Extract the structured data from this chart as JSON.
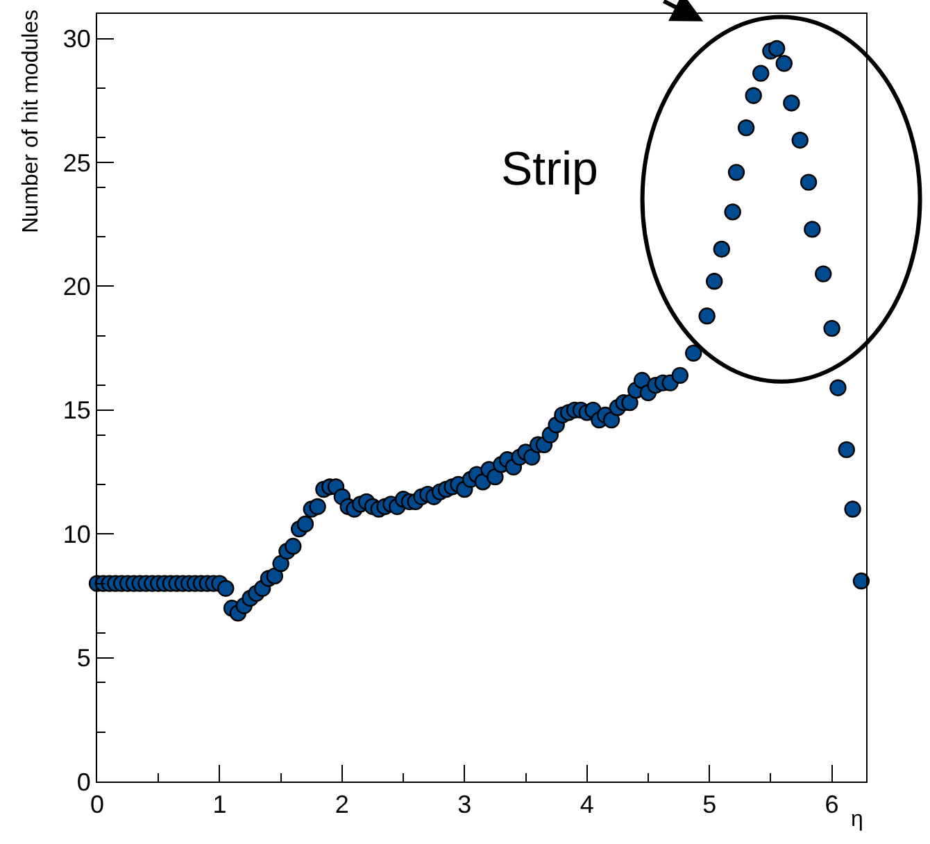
{
  "chart_data": {
    "type": "scatter",
    "xlabel": "η",
    "ylabel": "Number of hit modules",
    "annotations": [
      "Strip"
    ],
    "xlim": [
      0,
      6.28
    ],
    "ylim": [
      0,
      31
    ],
    "xticks": [
      0,
      1,
      2,
      3,
      4,
      5,
      6
    ],
    "yticks": [
      0,
      5,
      10,
      15,
      20,
      25,
      30
    ],
    "marker": "circle",
    "series": [
      {
        "color": "#004a8f",
        "x": [
          0,
          0.05,
          0.1,
          0.15,
          0.2,
          0.25,
          0.3,
          0.35,
          0.4,
          0.45,
          0.5,
          0.55,
          0.6,
          0.65,
          0.7,
          0.75,
          0.8,
          0.85,
          0.9,
          0.95,
          1.0,
          1.05,
          1.1,
          1.15,
          1.2,
          1.25,
          1.3,
          1.35,
          1.4,
          1.45,
          1.5,
          1.55,
          1.6,
          1.65,
          1.7,
          1.75,
          1.8,
          1.85,
          1.9,
          1.95,
          2.0,
          2.05,
          2.1,
          2.15,
          2.2,
          2.25,
          2.3,
          2.35,
          2.4,
          2.45,
          2.5,
          2.55,
          2.6,
          2.65,
          2.7,
          2.75,
          2.8,
          2.85,
          2.9,
          2.95,
          3.0,
          3.05,
          3.1,
          3.15,
          3.2,
          3.25,
          3.3,
          3.35,
          3.4,
          3.45,
          3.5,
          3.55,
          3.6,
          3.65,
          3.7,
          3.75,
          3.8,
          3.85,
          3.9,
          3.95,
          4.0,
          4.05,
          4.1,
          4.15,
          4.2,
          4.25,
          4.3,
          4.35,
          4.4,
          4.45,
          4.5,
          4.56,
          4.62,
          4.68,
          4.76,
          4.87,
          4.98,
          5.04,
          5.1,
          5.19,
          5.22,
          5.3,
          5.36,
          5.42,
          5.5,
          5.55,
          5.61,
          5.67,
          5.74,
          5.81,
          5.84,
          5.93,
          6.0,
          6.05,
          6.12,
          6.17,
          6.24
        ],
        "values": [
          8,
          8,
          8,
          8,
          8,
          8,
          8,
          8,
          8,
          8,
          8,
          8,
          8,
          8,
          8,
          8,
          8,
          8,
          8,
          8,
          8,
          7.8,
          7.0,
          6.8,
          7.1,
          7.4,
          7.6,
          7.8,
          8.2,
          8.3,
          8.8,
          9.3,
          9.5,
          10.2,
          10.4,
          11.0,
          11.1,
          11.8,
          11.9,
          11.9,
          11.5,
          11.1,
          11.0,
          11.2,
          11.3,
          11.1,
          11.0,
          11.1,
          11.2,
          11.1,
          11.4,
          11.3,
          11.3,
          11.5,
          11.6,
          11.5,
          11.7,
          11.8,
          11.9,
          12.0,
          11.8,
          12.2,
          12.4,
          12.1,
          12.6,
          12.3,
          12.8,
          13.0,
          12.7,
          13.1,
          13.3,
          13.1,
          13.6,
          13.6,
          14.0,
          14.4,
          14.8,
          14.9,
          15.0,
          15.0,
          14.9,
          15.0,
          14.6,
          14.8,
          14.6,
          15.1,
          15.3,
          15.3,
          15.8,
          16.2,
          15.7,
          16.0,
          16.1,
          16.1,
          16.4,
          17.3,
          18.8,
          20.2,
          21.5,
          23.0,
          24.6,
          26.4,
          27.7,
          28.6,
          29.5,
          29.6,
          29.0,
          27.4,
          25.9,
          24.2,
          22.3,
          20.5,
          18.3,
          15.9,
          13.4,
          11.0,
          8.1
        ]
      }
    ]
  }
}
